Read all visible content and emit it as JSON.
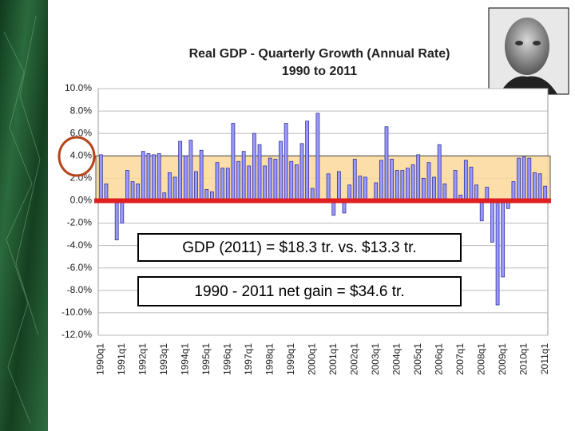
{
  "chart_data": {
    "type": "bar",
    "title": "Real GDP - Quarterly Growth (Annual Rate)",
    "subtitle": "1990 to 2011",
    "categories": [
      "1990q1",
      null,
      null,
      null,
      "1991q1",
      null,
      null,
      null,
      "1992q1",
      null,
      null,
      null,
      "1993q1",
      null,
      null,
      null,
      "1994q1",
      null,
      null,
      null,
      "1995q1",
      null,
      null,
      null,
      "1996q1",
      null,
      null,
      null,
      "1997q1",
      null,
      null,
      null,
      "1998q1",
      null,
      null,
      null,
      "1999q1",
      null,
      null,
      null,
      "2000q1",
      null,
      null,
      null,
      "2001q1",
      null,
      null,
      null,
      "2002q1",
      null,
      null,
      null,
      "2003q1",
      null,
      null,
      null,
      "2004q1",
      null,
      null,
      null,
      "2005q1",
      null,
      null,
      null,
      "2006q1",
      null,
      null,
      null,
      "2007q1",
      null,
      null,
      null,
      "2008q1",
      null,
      null,
      null,
      "2009q1",
      null,
      null,
      null,
      "2010q1",
      null,
      null,
      null,
      "2011q1"
    ],
    "values": [
      4.1,
      1.5,
      0.0,
      -3.5,
      -2.0,
      2.7,
      1.7,
      1.5,
      4.4,
      4.2,
      4.1,
      4.2,
      0.7,
      2.5,
      2.1,
      5.3,
      4.0,
      5.4,
      2.6,
      4.5,
      1.0,
      0.8,
      3.4,
      2.9,
      2.9,
      6.9,
      3.5,
      4.4,
      3.1,
      6.0,
      5.0,
      3.1,
      3.8,
      3.7,
      5.3,
      6.9,
      3.5,
      3.2,
      5.1,
      7.1,
      1.1,
      7.8,
      0.0,
      2.4,
      -1.3,
      2.6,
      -1.1,
      1.4,
      3.7,
      2.2,
      2.1,
      0.0,
      1.6,
      3.6,
      6.6,
      3.7,
      2.7,
      2.7,
      2.9,
      3.2,
      4.1,
      2.0,
      3.4,
      2.1,
      5.0,
      1.5,
      0.0,
      2.7,
      0.5,
      3.6,
      3.0,
      1.4,
      -1.8,
      1.2,
      -3.7,
      -9.3,
      -6.8,
      -0.7,
      1.7,
      3.8,
      3.9,
      3.8,
      2.5,
      2.4,
      1.3
    ],
    "color": "#9999ff",
    "ylim": [
      -12,
      10
    ],
    "yticks": [
      {
        "value": -12,
        "label": "-12.0%"
      },
      {
        "value": -10,
        "label": "-10.0%"
      },
      {
        "value": -8,
        "label": "-8.0%"
      },
      {
        "value": -6,
        "label": "-6.0%"
      },
      {
        "value": -4,
        "label": "-4.0%"
      },
      {
        "value": -2,
        "label": "-2.0%"
      },
      {
        "value": 0,
        "label": "0.0%"
      },
      {
        "value": 2,
        "label": "2.0%"
      },
      {
        "value": 4,
        "label": "4.0%"
      },
      {
        "value": 6,
        "label": "6.0%"
      },
      {
        "value": 8,
        "label": "8.0%"
      },
      {
        "value": 10,
        "label": "10.0%"
      }
    ],
    "grid": true,
    "highlight_band": [
      0,
      4
    ],
    "highlight_color": "#fbd99a",
    "reference_line_color": "#e02020",
    "annotations": [
      "GDP (2011) = $18.3 tr. vs. $13.3 tr.",
      "1990 - 2011 net gain = $34.6 tr."
    ]
  }
}
